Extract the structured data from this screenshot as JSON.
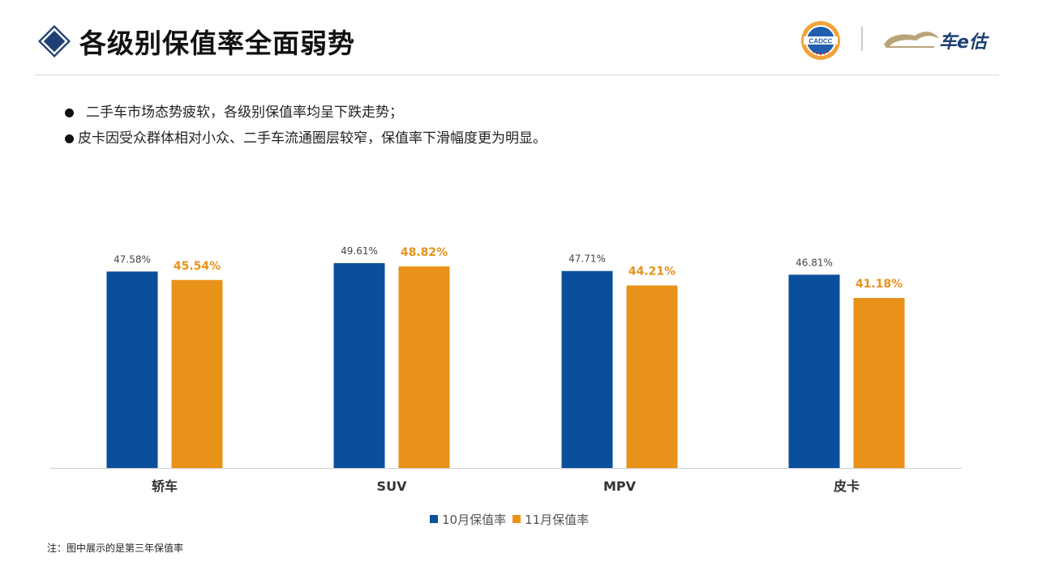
{
  "header": {
    "title": "各级别保值率全面弱势",
    "logo_left_text": "CADCC",
    "logo_right_text": "车e估"
  },
  "bullets": [
    "二手车市场态势疲软，各级别保值率均呈下跌走势；",
    "皮卡因受众群体相对小众、二手车流通圈层较窄，保值率下滑幅度更为明显。"
  ],
  "chart_data": {
    "type": "bar",
    "categories": [
      "轿车",
      "SUV",
      "MPV",
      "皮卡"
    ],
    "series": [
      {
        "name": "10月保值率",
        "values": [
          47.58,
          49.61,
          47.71,
          46.81
        ],
        "labels": [
          "47.58%",
          "49.61%",
          "47.71%",
          "46.81%"
        ],
        "color": "#0a4f9c"
      },
      {
        "name": "11月保值率",
        "values": [
          45.54,
          48.82,
          44.21,
          41.18
        ],
        "labels": [
          "45.54%",
          "48.82%",
          "44.21%",
          "41.18%"
        ],
        "color": "#e8921a"
      }
    ],
    "ylim": [
      0,
      50
    ],
    "grid": false,
    "legend_position": "bottom",
    "title": "",
    "xlabel": "",
    "ylabel": ""
  },
  "footnote": "注：图中展示的是第三年保值率",
  "colors": {
    "title_diamond": "#1e3f73",
    "accent_blue": "#0a4f9c",
    "accent_orange": "#e8921a"
  }
}
